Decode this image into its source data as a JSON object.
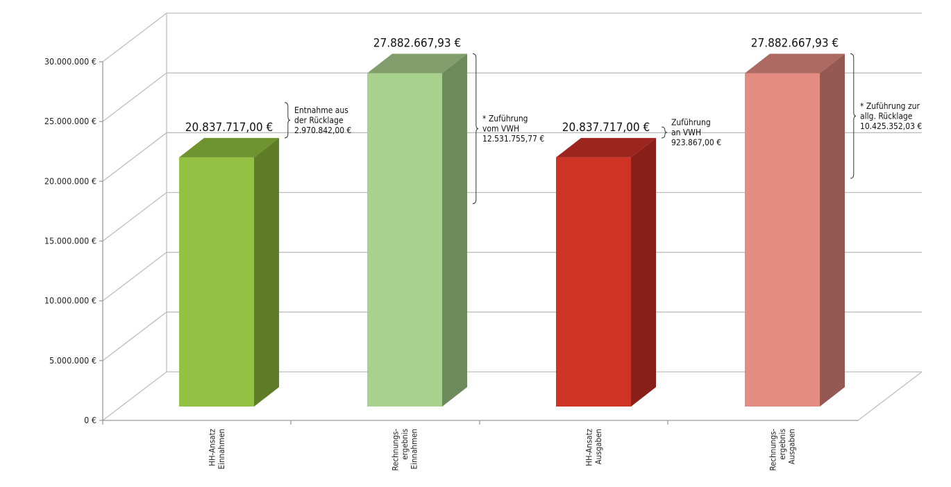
{
  "chart_data": {
    "type": "bar",
    "style": "3d-column",
    "categories": [
      [
        "HH-Ansatz",
        "Einnahmen"
      ],
      [
        "Rechnungs-",
        "ergebnis",
        "Einnahmen"
      ],
      [
        "HH-Ansatz",
        "Ausgaben"
      ],
      [
        "Rechnungs-",
        "ergebnis",
        "Ausgaben"
      ]
    ],
    "values": [
      20837717.0,
      27882667.93,
      20837717.0,
      27882667.93
    ],
    "value_labels": [
      "20.837.717,00 €",
      "27.882.667,93 €",
      "20.837.717,00 €",
      "27.882.667,93 €"
    ],
    "colors": [
      {
        "front": "#93c143",
        "side": "#5e7d26",
        "top": "#6e9430"
      },
      {
        "front": "#a9d18e",
        "side": "#6c8a5c",
        "top": "#819e6c"
      },
      {
        "front": "#cd3425",
        "side": "#882019",
        "top": "#9c261d"
      },
      {
        "front": "#e48c82",
        "side": "#955953",
        "top": "#ad6a62"
      }
    ],
    "ylim": [
      0,
      30000000
    ],
    "ytick_values": [
      0,
      5000000,
      10000000,
      15000000,
      20000000,
      25000000,
      30000000
    ],
    "ytick_labels": [
      "0 €",
      "5.000.000 €",
      "10.000.000 €",
      "15.000.000 €",
      "20.000.000 €",
      "25.000.000 €",
      "30.000.000 €"
    ],
    "grid": true,
    "legend": "none",
    "annotations": [
      {
        "bar": 0,
        "from": 20837717.0,
        "to": 23808559.0,
        "lines": [
          "Entnahme aus",
          "der Rücklage",
          "2.970.842,00 €"
        ]
      },
      {
        "bar": 1,
        "from": 15350912.16,
        "to": 27882667.93,
        "lines": [
          "* Zuführung",
          "vom VWH",
          "12.531.755,77 €"
        ]
      },
      {
        "bar": 2,
        "from": 20837717.0,
        "to": 21761584.0,
        "lines": [
          "Zuführung",
          "an VWH",
          "923.867,00 €"
        ]
      },
      {
        "bar": 3,
        "from": 17457315.9,
        "to": 27882667.93,
        "lines": [
          "* Zuführung zur",
          "allg. Rücklage",
          "10.425.352,03 €"
        ]
      }
    ]
  }
}
